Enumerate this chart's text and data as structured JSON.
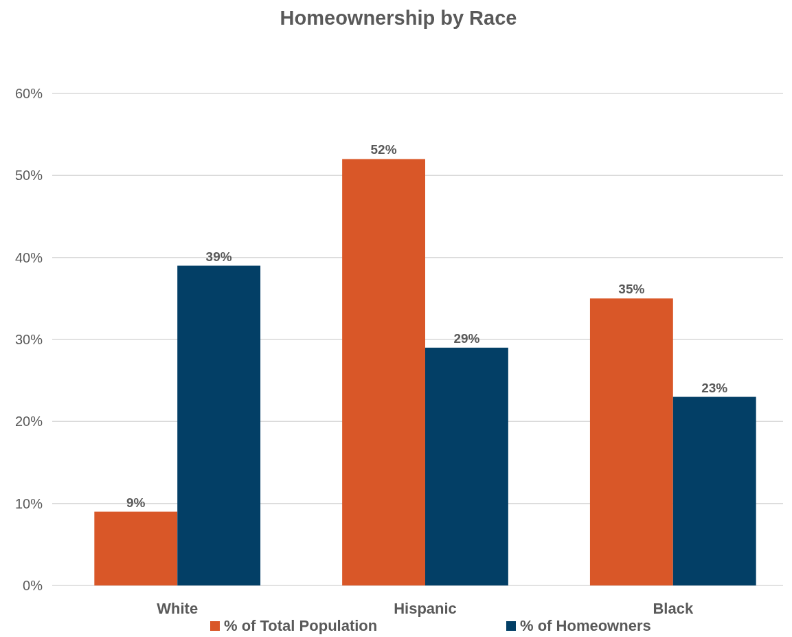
{
  "chart_data": {
    "type": "bar",
    "title": "Homeownership by Race",
    "categories": [
      "White",
      "Hispanic",
      "Black"
    ],
    "series": [
      {
        "name": "% of Total Population",
        "color": "#d95728",
        "values": [
          9,
          52,
          35
        ],
        "value_labels": [
          "9%",
          "52%",
          "35%"
        ]
      },
      {
        "name": "% of Homeowners",
        "color": "#033f66",
        "values": [
          39,
          29,
          23
        ],
        "value_labels": [
          "39%",
          "29%",
          "23%"
        ]
      }
    ],
    "ylim": [
      0,
      60
    ],
    "yticks": [
      {
        "value": 0,
        "label": "0%"
      },
      {
        "value": 10,
        "label": "10%"
      },
      {
        "value": 20,
        "label": "20%"
      },
      {
        "value": 30,
        "label": "30%"
      },
      {
        "value": 40,
        "label": "40%"
      },
      {
        "value": 50,
        "label": "50%"
      },
      {
        "value": 60,
        "label": "60%"
      }
    ],
    "grid": "y",
    "legend": "bottom"
  }
}
